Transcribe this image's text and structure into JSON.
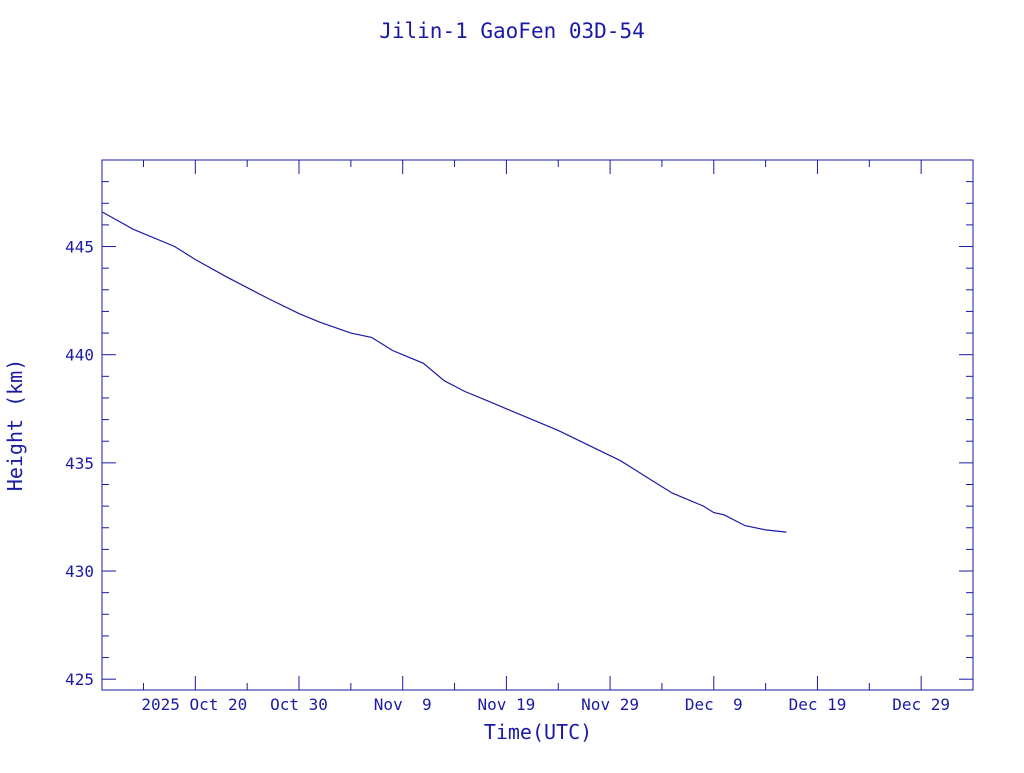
{
  "colors": {
    "ink": "#1a1aa6",
    "background": "#ffffff"
  },
  "chart_data": {
    "type": "line",
    "title": "Jilin-1 GaoFen 03D-54",
    "xlabel": "Time(UTC)",
    "ylabel": "Height (km)",
    "ylim": [
      424.5,
      449
    ],
    "xlim": [
      "2025-10-11",
      "2026-01-03"
    ],
    "grid": false,
    "y_ticks": [
      {
        "value": 425,
        "label": "425"
      },
      {
        "value": 430,
        "label": "430"
      },
      {
        "value": 435,
        "label": "435"
      },
      {
        "value": 440,
        "label": "440"
      },
      {
        "value": 445,
        "label": "445"
      }
    ],
    "x_ticks": [
      {
        "date": "2025-10-20",
        "label": "2025 Oct 20"
      },
      {
        "date": "2025-10-30",
        "label": "Oct 30"
      },
      {
        "date": "2025-11-09",
        "label": "Nov  9"
      },
      {
        "date": "2025-11-19",
        "label": "Nov 19"
      },
      {
        "date": "2025-11-29",
        "label": "Nov 29"
      },
      {
        "date": "2025-12-09",
        "label": "Dec  9"
      },
      {
        "date": "2025-12-19",
        "label": "Dec 19"
      },
      {
        "date": "2025-12-29",
        "label": "Dec 29"
      }
    ],
    "series": [
      {
        "x": [
          "2025-10-11",
          "2025-10-14",
          "2025-10-18",
          "2025-10-20",
          "2025-10-23",
          "2025-10-27",
          "2025-10-30",
          "2025-11-01",
          "2025-11-04",
          "2025-11-06",
          "2025-11-07",
          "2025-11-08",
          "2025-11-09",
          "2025-11-11",
          "2025-11-13",
          "2025-11-15",
          "2025-11-17",
          "2025-11-19",
          "2025-11-21",
          "2025-11-24",
          "2025-11-27",
          "2025-11-30",
          "2025-12-03",
          "2025-12-05",
          "2025-12-08",
          "2025-12-09",
          "2025-12-10",
          "2025-12-12",
          "2025-12-14",
          "2025-12-16"
        ],
        "y": [
          446.6,
          445.8,
          445.0,
          444.4,
          443.6,
          442.6,
          441.9,
          441.5,
          441.0,
          440.8,
          440.5,
          440.2,
          440.0,
          439.6,
          438.8,
          438.3,
          437.9,
          437.5,
          437.1,
          436.5,
          435.8,
          435.1,
          434.2,
          433.6,
          433.0,
          432.7,
          432.6,
          432.1,
          431.9,
          431.8
        ]
      }
    ]
  }
}
